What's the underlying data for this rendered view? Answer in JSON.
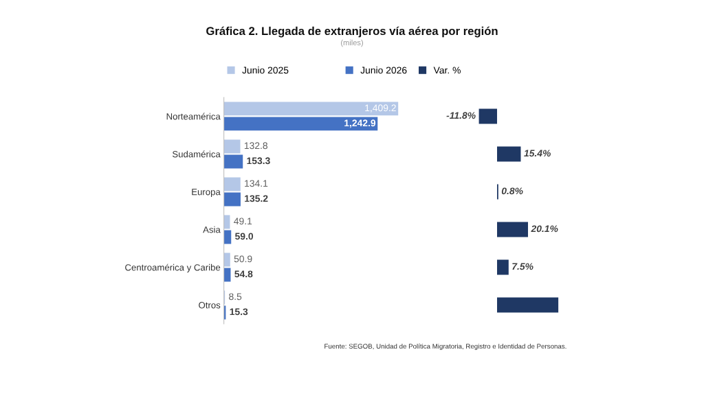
{
  "chart_data": [
    {
      "type": "bar",
      "orientation": "horizontal",
      "title": "Gráfica 2. Llegada de extranjeros vía aérea por región",
      "subtitle": "(miles)",
      "categories": [
        "Norteamérica",
        "Sudamérica",
        "Europa",
        "Asia",
        "Centroamérica y Caribe",
        "Otros"
      ],
      "series": [
        {
          "name": "Junio 2025",
          "color": "#b4c7e7",
          "values": [
            1409.2,
            132.8,
            134.1,
            49.1,
            50.9,
            8.5
          ],
          "value_labels": [
            "1,409.2",
            "132.8",
            "134.1",
            "49.1",
            "50.9",
            "8.5"
          ]
        },
        {
          "name": "Junio 2026",
          "color": "#4472c4",
          "values": [
            1242.9,
            153.3,
            135.2,
            59.0,
            54.8,
            15.3
          ],
          "value_labels": [
            "1,242.9",
            "153.3",
            "135.2",
            "59.0",
            "54.8",
            "15.3"
          ]
        }
      ],
      "legend": "top",
      "tick_labels": "y"
    },
    {
      "type": "bar",
      "orientation": "horizontal",
      "categories": [
        null,
        null,
        null,
        null,
        null,
        null
      ],
      "series": [
        {
          "name": "Var. %",
          "color": "#1f3864",
          "values": [
            -11.8,
            15.4,
            0.8,
            20.1,
            7.5,
            39.8
          ],
          "value_labels": [
            "-11.8%",
            "15.4%",
            "0.8%",
            "20.1%",
            "7.5%",
            null
          ]
        }
      ],
      "legend": "top",
      "annotations": [
        "Fuente: SEGOB, Unidad de Política Migratoria, Registro e Identidad de Personas."
      ]
    }
  ]
}
